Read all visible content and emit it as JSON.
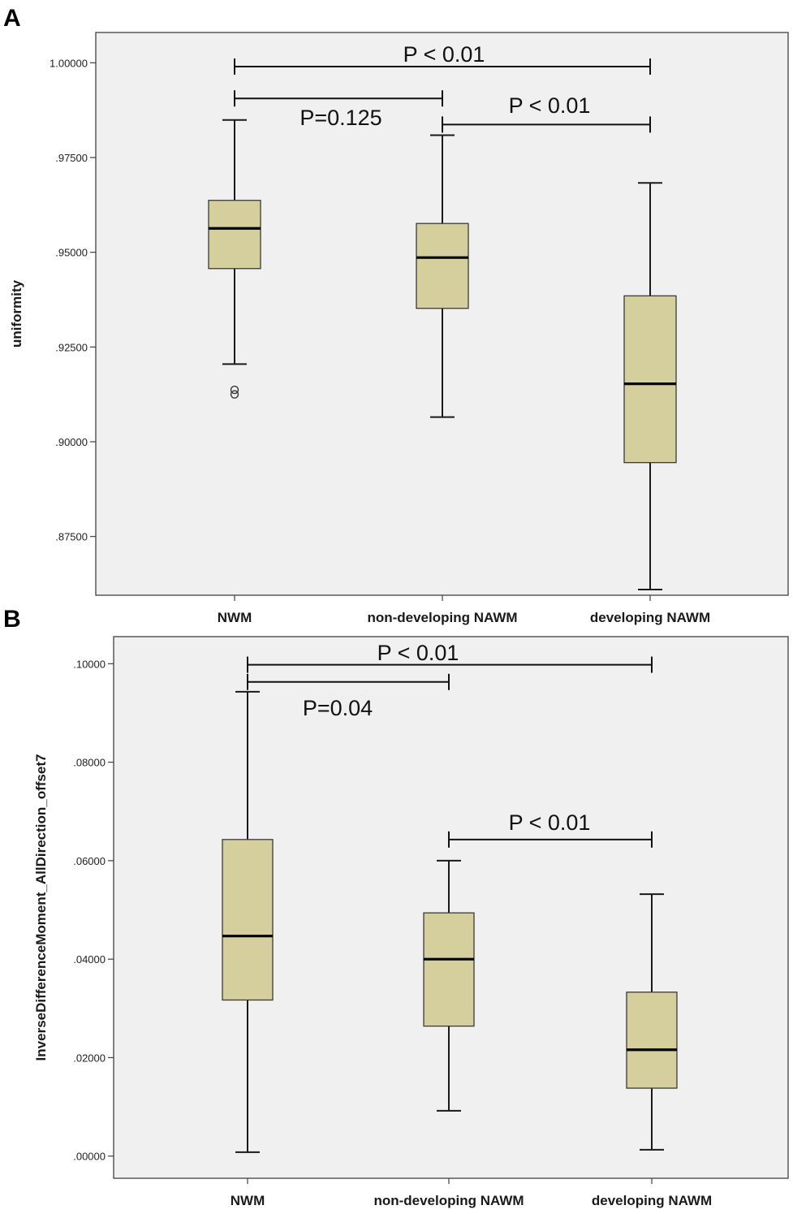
{
  "chart_data": [
    {
      "type": "box",
      "panel": "A",
      "ylabel": "uniformity",
      "ylim": [
        0.8595,
        1.008
      ],
      "yticks": [
        1.0,
        0.975,
        0.95,
        0.925,
        0.9,
        0.875
      ],
      "ytick_labels": [
        "1.00000",
        ".97500",
        ".95000",
        ".92500",
        ".90000",
        ".87500"
      ],
      "categories": [
        "NWM",
        "non-developing NAWM",
        "developing NAWM"
      ],
      "boxes": [
        {
          "category": "NWM",
          "min": 0.9205,
          "q1": 0.9457,
          "median": 0.9563,
          "q3": 0.9637,
          "max": 0.9849,
          "outliers": [
            0.9137,
            0.9125
          ]
        },
        {
          "category": "non-developing NAWM",
          "min": 0.9065,
          "q1": 0.9352,
          "median": 0.9486,
          "q3": 0.9576,
          "max": 0.9809,
          "outliers": []
        },
        {
          "category": "developing NAWM",
          "min": 0.861,
          "q1": 0.8945,
          "median": 0.9153,
          "q3": 0.9385,
          "max": 0.9683,
          "outliers": []
        }
      ],
      "comparisons": [
        {
          "from": "NWM",
          "to": "developing NAWM",
          "y": 0.999,
          "label": "P < 0.01"
        },
        {
          "from": "NWM",
          "to": "non-developing NAWM",
          "y": 0.9906,
          "label": "P=0.125"
        },
        {
          "from": "non-developing NAWM",
          "to": "developing NAWM",
          "y": 0.9837,
          "label": "P < 0.01"
        }
      ]
    },
    {
      "type": "box",
      "panel": "B",
      "ylabel": "InverseDifferenceMoment_AllDirection_offset7",
      "ylim": [
        -0.0045,
        0.1055
      ],
      "yticks": [
        0.1,
        0.08,
        0.06,
        0.04,
        0.02,
        0.0
      ],
      "ytick_labels": [
        ".10000",
        ".08000",
        ".06000",
        ".04000",
        ".02000",
        ".00000"
      ],
      "categories": [
        "NWM",
        "non-developing NAWM",
        "developing NAWM"
      ],
      "boxes": [
        {
          "category": "NWM",
          "min": 0.0008,
          "q1": 0.0317,
          "median": 0.0447,
          "q3": 0.0643,
          "max": 0.0943,
          "outliers": []
        },
        {
          "category": "non-developing NAWM",
          "min": 0.0092,
          "q1": 0.0264,
          "median": 0.04,
          "q3": 0.0494,
          "max": 0.06,
          "outliers": []
        },
        {
          "category": "developing NAWM",
          "min": 0.0013,
          "q1": 0.0138,
          "median": 0.0216,
          "q3": 0.0333,
          "max": 0.0532,
          "outliers": []
        }
      ],
      "comparisons": [
        {
          "from": "NWM",
          "to": "developing NAWM",
          "y": 0.0998,
          "label": "P < 0.01"
        },
        {
          "from": "NWM",
          "to": "non-developing NAWM",
          "y": 0.0963,
          "label": "P=0.04"
        },
        {
          "from": "non-developing NAWM",
          "to": "developing NAWM",
          "y": 0.0643,
          "label": "P < 0.01"
        }
      ]
    }
  ]
}
